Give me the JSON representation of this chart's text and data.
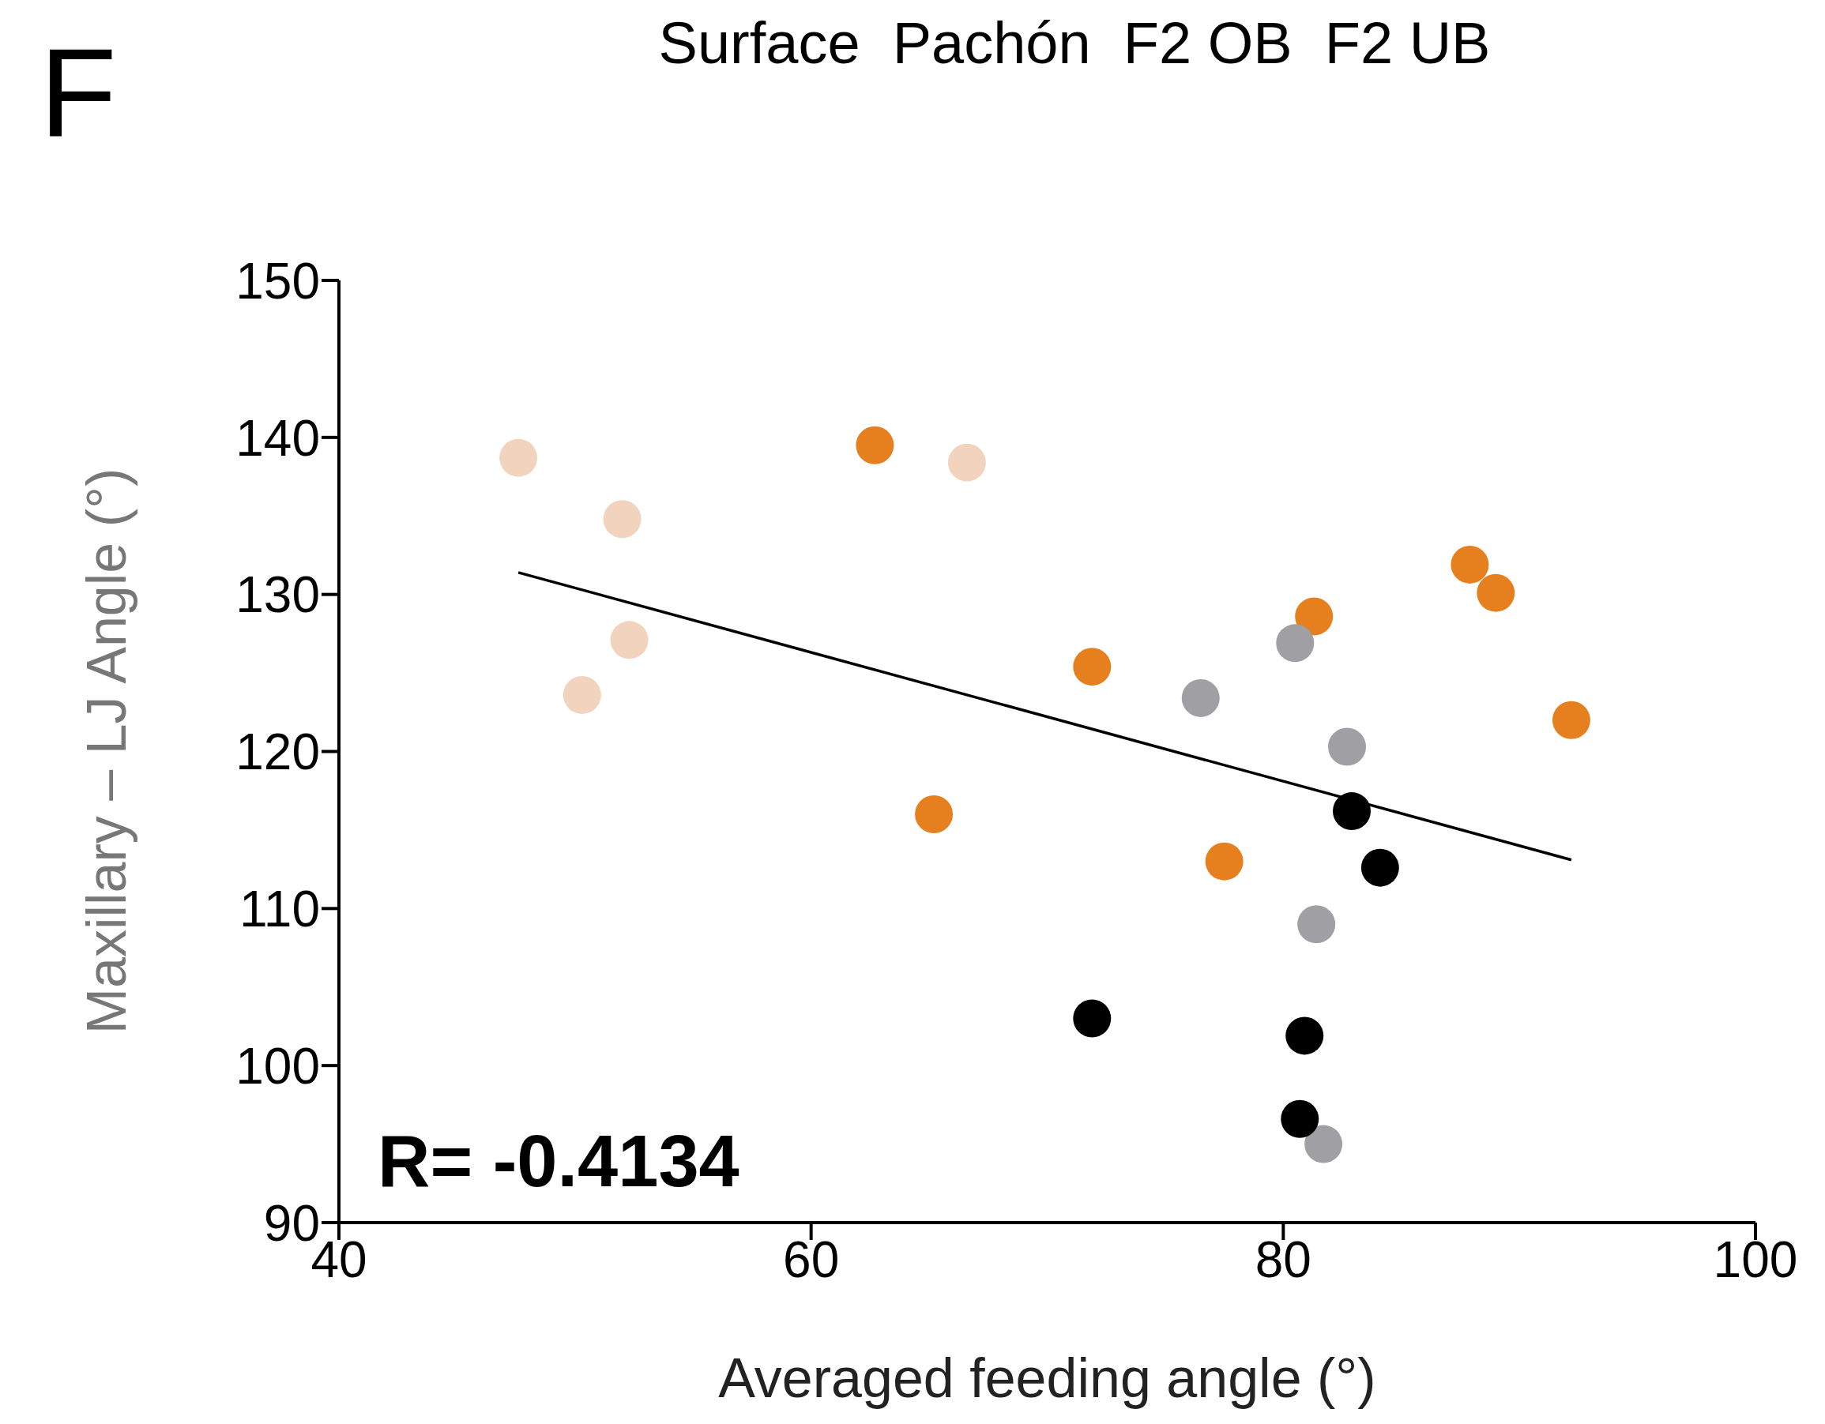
{
  "chart_data": {
    "type": "scatter",
    "title": "Surface  Pachón  F2 OB  F2 UB",
    "xlabel": "Averaged feeding angle (°)",
    "ylabel": "Maxillary – LJ Angle (°)",
    "annotations": [
      "F",
      "R= -0.4134"
    ],
    "xlim": [
      40,
      100
    ],
    "xticks": [
      40,
      60,
      80,
      100
    ],
    "ylim": [
      90,
      150
    ],
    "yticks": [
      90,
      100,
      110,
      120,
      130,
      140,
      150
    ],
    "grid": false,
    "legend": false,
    "marker": "circle",
    "series": [
      {
        "color": "#f2d3bd",
        "x": [
          47.6,
          52.0,
          52.3,
          50.3,
          66.6
        ],
        "values": [
          138.7,
          134.8,
          127.1,
          123.6,
          138.4
        ]
      },
      {
        "color": "#e6801f",
        "x": [
          62.7,
          71.9,
          65.2,
          77.5,
          81.3,
          87.9,
          89.0,
          92.2
        ],
        "values": [
          139.5,
          125.4,
          116.0,
          113.0,
          128.6,
          131.9,
          130.1,
          122.0
        ]
      },
      {
        "color": "#a0a0a4",
        "x": [
          80.5,
          76.5,
          82.7,
          81.4,
          81.7
        ],
        "values": [
          126.9,
          123.4,
          120.3,
          109.0,
          95.0
        ]
      },
      {
        "color": "#000000",
        "x": [
          82.9,
          84.1,
          71.9,
          80.9,
          80.7
        ],
        "values": [
          116.2,
          112.6,
          103.0,
          101.9,
          96.6
        ]
      },
      {
        "type": "line",
        "marker": "none",
        "color": "#000000",
        "x": [
          47.6,
          92.2
        ],
        "values": [
          131.4,
          113.1
        ]
      }
    ]
  }
}
